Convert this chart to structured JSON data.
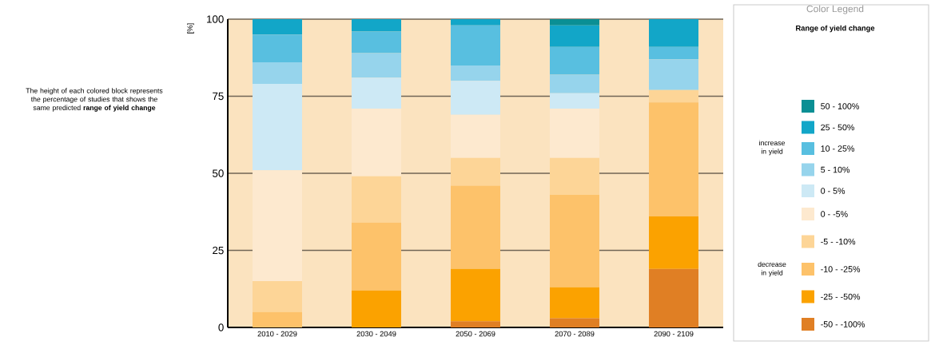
{
  "chart_data": {
    "type": "bar",
    "stacked": true,
    "ylabel": "[%]",
    "legend_title": "Color Legend",
    "legend": "right",
    "grid": "y",
    "categories": [
      "2010 - 2029",
      "2030 - 2049",
      "2050 - 2069",
      "2070 - 2089",
      "2090 - 2109"
    ],
    "ylim": [
      0,
      100
    ],
    "yticks": [
      0,
      25,
      50,
      75,
      100
    ],
    "series": [
      {
        "name": "-50 - -100%",
        "color": "#e07f24",
        "values": [
          0,
          0,
          2,
          3,
          19
        ]
      },
      {
        "name": "-25 - -50%",
        "color": "#fba200",
        "values": [
          0,
          12,
          17,
          10,
          17
        ]
      },
      {
        "name": "-10 - -25%",
        "color": "#fdc26a",
        "values": [
          5,
          22,
          27,
          30,
          37
        ]
      },
      {
        "name": "-5 - -10%",
        "color": "#fdd597",
        "values": [
          10,
          15,
          9,
          12,
          4
        ]
      },
      {
        "name": "0 - -5%",
        "color": "#fde9cf",
        "values": [
          36,
          22,
          14,
          16,
          0
        ]
      },
      {
        "name": "0 - 5%",
        "color": "#cde9f5",
        "values": [
          28,
          10,
          11,
          5,
          0
        ]
      },
      {
        "name": "5 - 10%",
        "color": "#96d4ec",
        "values": [
          7,
          8,
          5,
          6,
          10
        ]
      },
      {
        "name": "10 - 25%",
        "color": "#58bfe0",
        "values": [
          9,
          7,
          13,
          9,
          4
        ]
      },
      {
        "name": "25 - 50%",
        "color": "#12a6c8",
        "values": [
          5,
          4,
          2,
          7,
          9
        ]
      },
      {
        "name": "50 - 100%",
        "color": "#0a8f94",
        "values": [
          0,
          0,
          0,
          2,
          0
        ]
      }
    ],
    "annotations": [
      "The height of each colored block represents the percentage of studies that shows the same predicted **range of yield change**",
      "Range of yield change",
      "increase in yield",
      "decrease in yield"
    ]
  }
}
